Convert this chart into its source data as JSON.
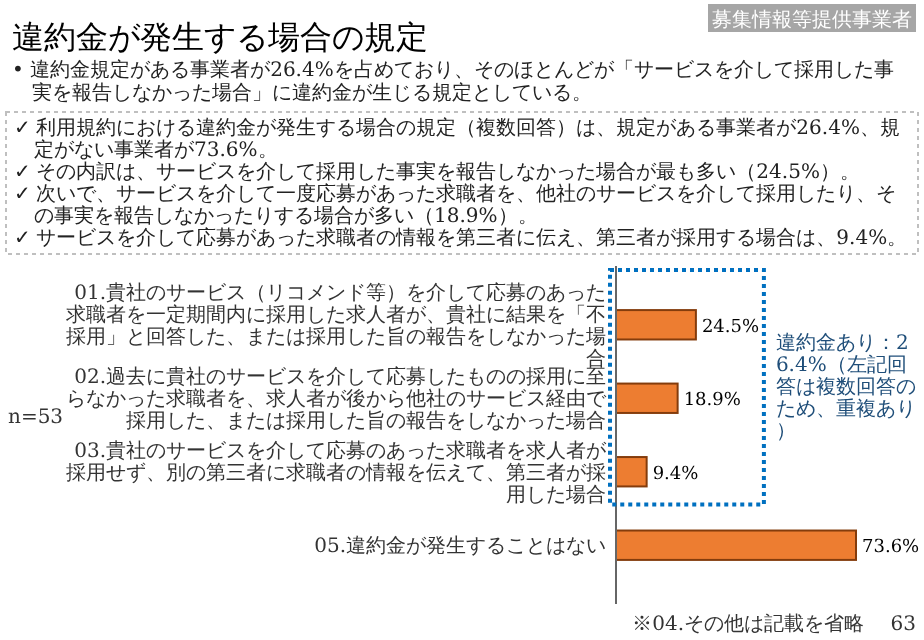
{
  "chart_data": {
    "type": "bar",
    "orientation": "horizontal",
    "title": "違約金が発生する場合の規定",
    "subtitle": "• 違約金規定がある事業者が26.4%を占めており、そのほとんどが「サービスを介して採用した事実を報告しなかった場合」に違約金が生じる規定としている。",
    "categories": [
      "01.貴社のサービス（リコメンド等）を介して応募のあった求職者を一定期間内に採用した求人者が、貴社に結果を「不採用」と回答した、または採用した旨の報告をしなかった場合",
      "02.過去に貴社のサービスを介して応募したものの採用に至らなかった求職者を、求人者が後から他社のサービス経由で採用した、または採用した旨の報告をしなかった場合",
      "03.貴社のサービスを介して応募のあった求職者を求人者が採用せず、別の第三者に求職者の情報を伝えて、第三者が採用した場合",
      "05.違約金が発生することはない"
    ],
    "values": [
      24.5,
      18.9,
      9.4,
      73.6
    ],
    "value_labels": [
      "24.5%",
      "18.9%",
      "9.4%",
      "73.6%"
    ],
    "color": "#ed7d31",
    "annotations": [
      "募集情報等提供事業者",
      "✓ 利用規約における違約金が発生する場合の規定（複数回答）は、規定がある事業者が26.4%、規定がない事業者が73.6%。",
      "✓ その内訳は、サービスを介して採用した事実を報告しなかった場合が最も多い（24.5%）。",
      "✓ 次いで、サービスを介して一度応募があった求職者を、他社のサービスを介して採用したり、その事実を報告しなかったりする場合が多い（18.9%）。",
      "✓ サービスを介して応募があった求職者の情報を第三者に伝え、第三者が採用する場合は、9.4%。",
      "n=53",
      "違約金あり：26.4%（左記回答は複数回答のため、重複あり）",
      "※04.その他は記載を省略",
      "63"
    ]
  }
}
